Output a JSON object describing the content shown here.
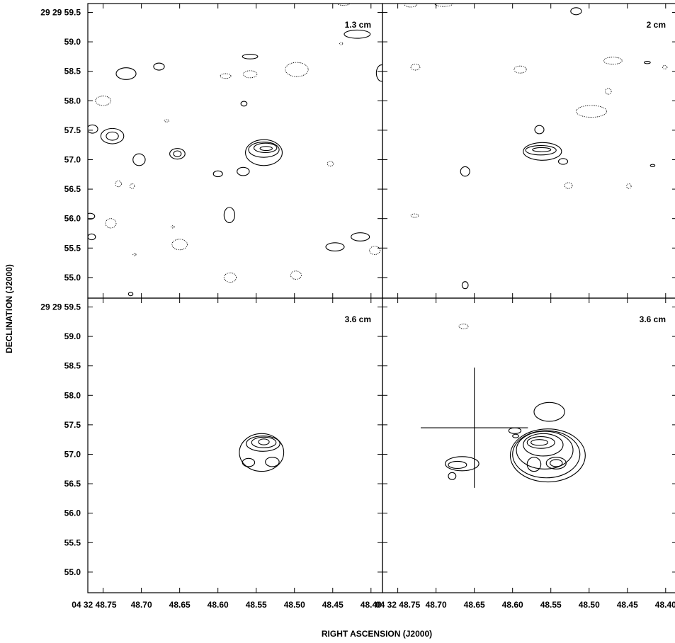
{
  "chart_data": {
    "type": "contour",
    "xlabel": "RIGHT ASCENSION (J2000)",
    "ylabel": "DECLINATION (J2000)",
    "x_ticks": [
      "04 32 48.75",
      "48.70",
      "48.65",
      "48.60",
      "48.55",
      "48.50",
      "48.45",
      "48.40"
    ],
    "x_tick_values": [
      48.75,
      48.7,
      48.65,
      48.6,
      48.55,
      48.5,
      48.45,
      48.4
    ],
    "y_ticks": [
      "29 29 59.5",
      "59.0",
      "58.5",
      "58.0",
      "57.5",
      "57.0",
      "56.5",
      "56.0",
      "55.5",
      "55.0"
    ],
    "y_tick_values": [
      59.5,
      59.0,
      58.5,
      58.0,
      57.5,
      57.0,
      56.5,
      56.0,
      55.5,
      55.0
    ],
    "xlim": [
      48.77,
      48.385
    ],
    "ylim": [
      54.65,
      59.65
    ],
    "panels": [
      {
        "label": "1.3 cm",
        "peak": {
          "ra": 48.537,
          "dec": 57.19
        },
        "solid": [
          {
            "ra": 48.537,
            "dec": 57.19,
            "rx": 0.008,
            "ry": 0.035
          },
          {
            "ra": 48.538,
            "dec": 57.2,
            "rx": 0.015,
            "ry": 0.08
          },
          {
            "ra": 48.54,
            "dec": 57.17,
            "rx": 0.02,
            "ry": 0.13
          },
          {
            "ra": 48.54,
            "dec": 57.12,
            "rx": 0.024,
            "ry": 0.22
          },
          {
            "ra": 48.72,
            "dec": 58.46,
            "rx": 0.013,
            "ry": 0.1
          },
          {
            "ra": 48.677,
            "dec": 58.58,
            "rx": 0.007,
            "ry": 0.06
          },
          {
            "ra": 48.764,
            "dec": 57.52,
            "rx": 0.007,
            "ry": 0.07
          },
          {
            "ra": 48.738,
            "dec": 57.4,
            "rx": 0.015,
            "ry": 0.13
          },
          {
            "ra": 48.738,
            "dec": 57.4,
            "rx": 0.008,
            "ry": 0.07
          },
          {
            "ra": 48.703,
            "dec": 57.0,
            "rx": 0.008,
            "ry": 0.1
          },
          {
            "ra": 48.653,
            "dec": 57.1,
            "rx": 0.01,
            "ry": 0.09
          },
          {
            "ra": 48.653,
            "dec": 57.1,
            "rx": 0.005,
            "ry": 0.05
          },
          {
            "ra": 48.6,
            "dec": 56.76,
            "rx": 0.006,
            "ry": 0.05
          },
          {
            "ra": 48.567,
            "dec": 56.8,
            "rx": 0.008,
            "ry": 0.07
          },
          {
            "ra": 48.585,
            "dec": 56.06,
            "rx": 0.007,
            "ry": 0.13
          },
          {
            "ra": 48.447,
            "dec": 55.52,
            "rx": 0.012,
            "ry": 0.07
          },
          {
            "ra": 48.414,
            "dec": 55.69,
            "rx": 0.012,
            "ry": 0.07
          },
          {
            "ra": 48.566,
            "dec": 57.95,
            "rx": 0.004,
            "ry": 0.04
          },
          {
            "ra": 48.558,
            "dec": 58.75,
            "rx": 0.01,
            "ry": 0.04
          },
          {
            "ra": 48.386,
            "dec": 58.47,
            "rx": 0.007,
            "ry": 0.14
          },
          {
            "ra": 48.418,
            "dec": 59.13,
            "rx": 0.017,
            "ry": 0.07
          },
          {
            "ra": 48.765,
            "dec": 55.69,
            "rx": 0.005,
            "ry": 0.05
          },
          {
            "ra": 48.767,
            "dec": 56.04,
            "rx": 0.006,
            "ry": 0.05
          },
          {
            "ra": 48.714,
            "dec": 54.72,
            "rx": 0.003,
            "ry": 0.03
          }
        ],
        "dotted": [
          {
            "ra": 48.75,
            "dec": 58.0,
            "rx": 0.01,
            "ry": 0.08
          },
          {
            "ra": 48.497,
            "dec": 58.53,
            "rx": 0.015,
            "ry": 0.12
          },
          {
            "ra": 48.558,
            "dec": 58.45,
            "rx": 0.009,
            "ry": 0.06
          },
          {
            "ra": 48.59,
            "dec": 58.42,
            "rx": 0.007,
            "ry": 0.04
          },
          {
            "ra": 48.73,
            "dec": 56.59,
            "rx": 0.004,
            "ry": 0.05
          },
          {
            "ra": 48.712,
            "dec": 56.55,
            "rx": 0.003,
            "ry": 0.04
          },
          {
            "ra": 48.74,
            "dec": 55.92,
            "rx": 0.007,
            "ry": 0.08
          },
          {
            "ra": 48.65,
            "dec": 55.56,
            "rx": 0.01,
            "ry": 0.09
          },
          {
            "ra": 48.584,
            "dec": 55.0,
            "rx": 0.008,
            "ry": 0.08
          },
          {
            "ra": 48.498,
            "dec": 55.04,
            "rx": 0.007,
            "ry": 0.07
          },
          {
            "ra": 48.395,
            "dec": 55.46,
            "rx": 0.007,
            "ry": 0.07
          },
          {
            "ra": 48.453,
            "dec": 56.93,
            "rx": 0.004,
            "ry": 0.04
          },
          {
            "ra": 48.667,
            "dec": 57.66,
            "rx": 0.003,
            "ry": 0.02
          },
          {
            "ra": 48.659,
            "dec": 55.86,
            "rx": 0.002,
            "ry": 0.02
          },
          {
            "ra": 48.709,
            "dec": 55.39,
            "rx": 0.002,
            "ry": 0.02
          },
          {
            "ra": 48.439,
            "dec": 58.97,
            "rx": 0.002,
            "ry": 0.02
          },
          {
            "ra": 48.436,
            "dec": 59.65,
            "rx": 0.008,
            "ry": 0.03
          }
        ]
      },
      {
        "label": "2 cm",
        "peak": {
          "ra": 48.562,
          "dec": 57.17
        },
        "solid": [
          {
            "ra": 48.562,
            "dec": 57.17,
            "rx": 0.012,
            "ry": 0.035
          },
          {
            "ra": 48.563,
            "dec": 57.16,
            "rx": 0.02,
            "ry": 0.08
          },
          {
            "ra": 48.561,
            "dec": 57.14,
            "rx": 0.025,
            "ry": 0.15
          },
          {
            "ra": 48.565,
            "dec": 57.51,
            "rx": 0.006,
            "ry": 0.07
          },
          {
            "ra": 48.534,
            "dec": 56.97,
            "rx": 0.006,
            "ry": 0.05
          },
          {
            "ra": 48.662,
            "dec": 56.8,
            "rx": 0.006,
            "ry": 0.08
          },
          {
            "ra": 48.662,
            "dec": 54.87,
            "rx": 0.004,
            "ry": 0.06
          },
          {
            "ra": 48.517,
            "dec": 59.52,
            "rx": 0.007,
            "ry": 0.06
          },
          {
            "ra": 48.424,
            "dec": 58.65,
            "rx": 0.004,
            "ry": 0.02
          },
          {
            "ra": 48.417,
            "dec": 56.9,
            "rx": 0.003,
            "ry": 0.02
          }
        ],
        "dotted": [
          {
            "ra": 48.727,
            "dec": 58.57,
            "rx": 0.006,
            "ry": 0.05
          },
          {
            "ra": 48.59,
            "dec": 58.53,
            "rx": 0.008,
            "ry": 0.06
          },
          {
            "ra": 48.469,
            "dec": 58.68,
            "rx": 0.012,
            "ry": 0.06
          },
          {
            "ra": 48.475,
            "dec": 58.16,
            "rx": 0.004,
            "ry": 0.05
          },
          {
            "ra": 48.497,
            "dec": 57.82,
            "rx": 0.02,
            "ry": 0.1
          },
          {
            "ra": 48.527,
            "dec": 56.56,
            "rx": 0.005,
            "ry": 0.05
          },
          {
            "ra": 48.448,
            "dec": 56.55,
            "rx": 0.003,
            "ry": 0.04
          },
          {
            "ra": 48.728,
            "dec": 56.05,
            "rx": 0.005,
            "ry": 0.03
          },
          {
            "ra": 48.401,
            "dec": 58.57,
            "rx": 0.003,
            "ry": 0.03
          },
          {
            "ra": 48.69,
            "dec": 59.65,
            "rx": 0.012,
            "ry": 0.05
          },
          {
            "ra": 48.733,
            "dec": 59.63,
            "rx": 0.008,
            "ry": 0.04
          }
        ]
      },
      {
        "label": "3.6 cm",
        "peak": {
          "ra": 48.54,
          "dec": 57.21
        },
        "solid": [
          {
            "ra": 48.54,
            "dec": 57.21,
            "rx": 0.007,
            "ry": 0.05
          },
          {
            "ra": 48.54,
            "dec": 57.2,
            "rx": 0.016,
            "ry": 0.09
          },
          {
            "ra": 48.541,
            "dec": 57.18,
            "rx": 0.022,
            "ry": 0.13
          },
          {
            "ra": 48.543,
            "dec": 57.03,
            "rx": 0.029,
            "ry": 0.32
          },
          {
            "ra": 48.529,
            "dec": 56.87,
            "rx": 0.009,
            "ry": 0.08
          },
          {
            "ra": 48.56,
            "dec": 56.86,
            "rx": 0.008,
            "ry": 0.07
          }
        ],
        "dotted": []
      },
      {
        "label": "3.6 cm",
        "peak": {
          "ra": 48.565,
          "dec": 57.2
        },
        "marker": {
          "ra": 48.65,
          "dec": 57.45,
          "ra_halfwidth": 0.07,
          "dec_halfwidth": 1.02
        },
        "solid": [
          {
            "ra": 48.565,
            "dec": 57.2,
            "rx": 0.011,
            "ry": 0.05
          },
          {
            "ra": 48.563,
            "dec": 57.2,
            "rx": 0.018,
            "ry": 0.1
          },
          {
            "ra": 48.56,
            "dec": 57.16,
            "rx": 0.026,
            "ry": 0.19
          },
          {
            "ra": 48.558,
            "dec": 57.07,
            "rx": 0.037,
            "ry": 0.32
          },
          {
            "ra": 48.556,
            "dec": 57.0,
            "rx": 0.044,
            "ry": 0.4
          },
          {
            "ra": 48.554,
            "dec": 56.98,
            "rx": 0.049,
            "ry": 0.45
          },
          {
            "ra": 48.543,
            "dec": 56.85,
            "rx": 0.008,
            "ry": 0.06
          },
          {
            "ra": 48.543,
            "dec": 56.85,
            "rx": 0.013,
            "ry": 0.1
          },
          {
            "ra": 48.572,
            "dec": 56.83,
            "rx": 0.009,
            "ry": 0.12
          },
          {
            "ra": 48.666,
            "dec": 56.84,
            "rx": 0.022,
            "ry": 0.12
          },
          {
            "ra": 48.672,
            "dec": 56.82,
            "rx": 0.012,
            "ry": 0.06
          },
          {
            "ra": 48.597,
            "dec": 57.4,
            "rx": 0.008,
            "ry": 0.05
          },
          {
            "ra": 48.596,
            "dec": 57.31,
            "rx": 0.004,
            "ry": 0.03
          },
          {
            "ra": 48.679,
            "dec": 56.63,
            "rx": 0.005,
            "ry": 0.06
          },
          {
            "ra": 48.552,
            "dec": 57.72,
            "rx": 0.02,
            "ry": 0.16
          }
        ],
        "dotted": [
          {
            "ra": 48.664,
            "dec": 59.17,
            "rx": 0.006,
            "ry": 0.04
          }
        ]
      }
    ]
  }
}
